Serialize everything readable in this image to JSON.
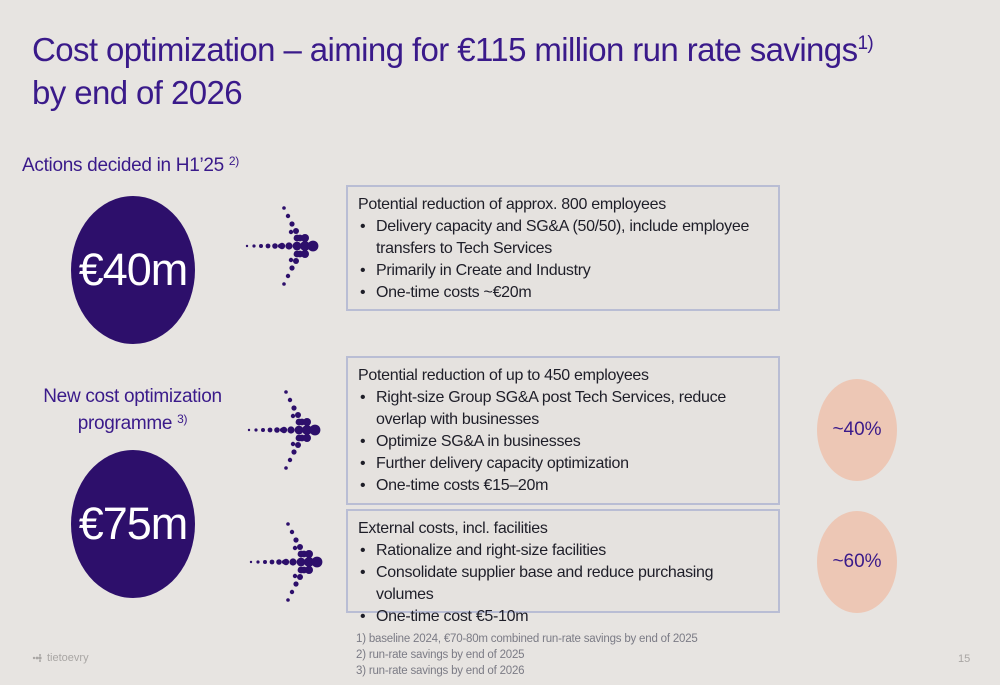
{
  "title": {
    "main": "Cost optimization – aiming for €115 million run rate savings",
    "sup": "1)",
    "line2": "by end of 2026"
  },
  "actions": {
    "label": "Actions decided in H1’25",
    "sup": "2)",
    "amount": "€40m",
    "box": {
      "heading": "Potential reduction of approx. 800 employees",
      "bullets": [
        "Delivery capacity and SG&A (50/50), include employee transfers to Tech Services",
        "Primarily in Create and Industry",
        "One-time costs ~€20m"
      ]
    }
  },
  "programme": {
    "label_line1": "New cost optimization",
    "label_line2": "programme",
    "sup": "3)",
    "amount": "€75m",
    "box1": {
      "heading": "Potential reduction of up to 450 employees",
      "bullets": [
        "Right-size Group SG&A post Tech Services, reduce overlap with businesses",
        "Optimize SG&A in businesses",
        "Further delivery capacity optimization",
        "One-time costs €15–20m"
      ],
      "share": "~40%"
    },
    "box2": {
      "heading": "External costs, incl. facilities",
      "bullets": [
        "Rationalize and right-size facilities",
        "Consolidate supplier base and reduce purchasing volumes",
        "One-time cost €5-10m"
      ],
      "share": "~60%"
    }
  },
  "footnotes": [
    "1) baseline 2024, €70-80m combined run-rate savings by end of 2025",
    "2) run-rate savings by end of 2025",
    "3) run-rate savings by end of 2026"
  ],
  "logo": "tietoevry",
  "page_number": "15",
  "colors": {
    "primary": "#2d0f6b",
    "title": "#3a1a8a",
    "accent_peach": "#edc7b5",
    "background": "#e7e4e1"
  }
}
